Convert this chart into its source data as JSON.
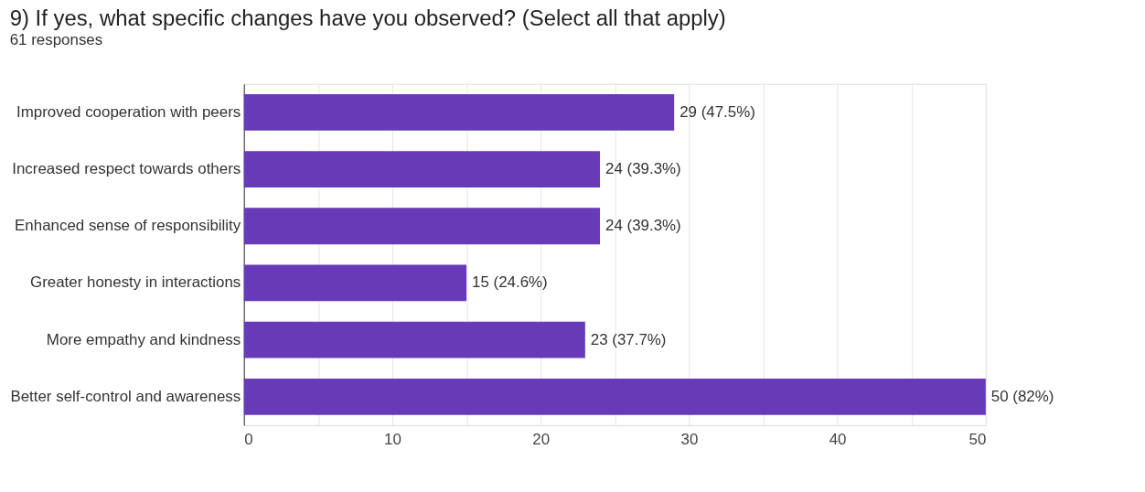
{
  "chart_data": {
    "type": "bar",
    "orientation": "horizontal",
    "title": "9) If yes, what specific changes have you observed? (Select all that apply)",
    "subtitle": "61 responses",
    "categories": [
      "Improved cooperation with peers",
      "Increased respect towards others",
      "Enhanced sense of responsibility",
      "Greater honesty in interactions",
      "More empathy and kindness",
      "Better self-control and awareness"
    ],
    "values": [
      29,
      24,
      24,
      15,
      23,
      50
    ],
    "value_labels": [
      "29 (47.5%)",
      "24 (39.3%)",
      "24 (39.3%)",
      "15 (24.6%)",
      "23 (37.7%)",
      "50 (82%)"
    ],
    "color": "#673ab7",
    "xlim": [
      0,
      50
    ],
    "xticks": [
      0,
      {
        "value": 5,
        "label": null
      },
      10,
      {
        "value": 15,
        "label": null
      },
      20,
      {
        "value": 25,
        "label": null
      },
      30,
      {
        "value": 35,
        "label": null
      },
      40,
      {
        "value": 45,
        "label": null
      },
      50
    ],
    "grid": "x"
  }
}
